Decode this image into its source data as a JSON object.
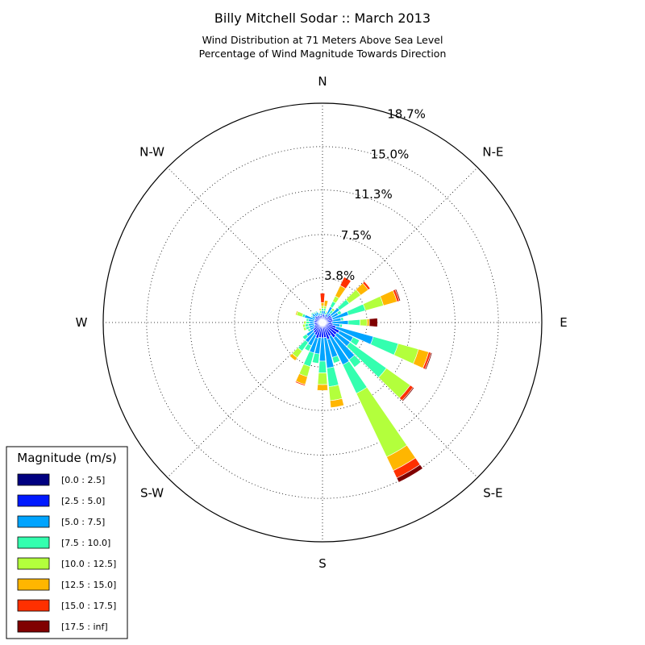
{
  "chart_data": {
    "type": "windrose",
    "title": "Billy Mitchell Sodar :: March 2013",
    "subtitle_lines": [
      "Wind Distribution at 71 Meters Above Sea Level",
      "Percentage of Wind Magnitude Towards Direction"
    ],
    "direction_labels": [
      "N",
      "N-E",
      "E",
      "S-E",
      "S",
      "S-W",
      "W",
      "N-W"
    ],
    "radial_ticks": [
      "3.8%",
      "7.5%",
      "11.3%",
      "15.0%",
      "18.7%"
    ],
    "rmax": 18.7,
    "sector_count": 36,
    "legend": {
      "title": "Magnitude (m/s)",
      "placement": "lower-left",
      "bins": [
        {
          "label": "[0.0 : 2.5]",
          "color": "#000080"
        },
        {
          "label": "[2.5 : 5.0]",
          "color": "#0019ff"
        },
        {
          "label": "[5.0 : 7.5]",
          "color": "#00a4ff"
        },
        {
          "label": "[7.5 : 10.0]",
          "color": "#33ffaf"
        },
        {
          "label": "[10.0 : 12.5]",
          "color": "#b3ff3c"
        },
        {
          "label": "[12.5 : 15.0]",
          "color": "#ffb600"
        },
        {
          "label": "[15.0 : 17.5]",
          "color": "#ff3000"
        },
        {
          "label": "[17.5 : inf]",
          "color": "#800000"
        }
      ]
    },
    "sectors": [
      {
        "direction_deg": 0,
        "values": [
          0.3,
          0.4,
          0.3,
          0.2,
          0.2,
          0.3,
          0.8,
          0.0
        ]
      },
      {
        "direction_deg": 10,
        "values": [
          0.3,
          0.4,
          0.3,
          0.2,
          0.2,
          0.5,
          0.0,
          0.0
        ]
      },
      {
        "direction_deg": 20,
        "values": [
          0.2,
          0.3,
          0.2,
          0.2,
          0.1,
          0.0,
          0.0,
          0.0
        ]
      },
      {
        "direction_deg": 30,
        "values": [
          0.3,
          0.5,
          0.7,
          0.5,
          0.5,
          1.0,
          0.8,
          0.0
        ]
      },
      {
        "direction_deg": 40,
        "values": [
          0.2,
          0.4,
          0.4,
          0.3,
          0.2,
          0.0,
          0.0,
          0.0
        ]
      },
      {
        "direction_deg": 50,
        "values": [
          0.3,
          0.6,
          0.9,
          1.0,
          1.2,
          0.8,
          0.2,
          0.0
        ]
      },
      {
        "direction_deg": 60,
        "values": [
          0.3,
          0.6,
          0.6,
          0.3,
          0.0,
          0.0,
          0.0,
          0.0
        ]
      },
      {
        "direction_deg": 70,
        "values": [
          0.3,
          0.6,
          1.4,
          1.5,
          1.6,
          1.2,
          0.2,
          0.1
        ]
      },
      {
        "direction_deg": 80,
        "values": [
          0.3,
          0.6,
          0.7,
          0.2,
          0.0,
          0.0,
          0.0,
          0.0
        ]
      },
      {
        "direction_deg": 90,
        "values": [
          0.3,
          0.5,
          1.4,
          1.0,
          0.6,
          0.2,
          0.0,
          0.7
        ]
      },
      {
        "direction_deg": 100,
        "values": [
          0.3,
          0.6,
          0.6,
          0.2,
          0.0,
          0.0,
          0.0,
          0.0
        ]
      },
      {
        "direction_deg": 110,
        "values": [
          0.3,
          0.9,
          3.3,
          2.2,
          1.8,
          0.9,
          0.2,
          0.1
        ]
      },
      {
        "direction_deg": 120,
        "values": [
          0.3,
          1.3,
          1.3,
          0.6,
          0.0,
          0.0,
          0.0,
          0.0
        ]
      },
      {
        "direction_deg": 130,
        "values": [
          0.3,
          1.2,
          1.4,
          3.8,
          2.5,
          0.0,
          0.3,
          0.1
        ]
      },
      {
        "direction_deg": 140,
        "values": [
          0.3,
          1.3,
          2.3,
          0.8,
          0.0,
          0.0,
          0.0,
          0.0
        ]
      },
      {
        "direction_deg": 150,
        "values": [
          0.3,
          1.0,
          2.7,
          2.7,
          6.0,
          1.3,
          0.7,
          0.4
        ]
      },
      {
        "direction_deg": 160,
        "values": [
          0.3,
          1.2,
          1.6,
          0.5,
          0.0,
          0.0,
          0.0,
          0.0
        ]
      },
      {
        "direction_deg": 170,
        "values": [
          0.3,
          1.0,
          2.6,
          1.6,
          1.2,
          0.6,
          0.0,
          0.0
        ]
      },
      {
        "direction_deg": 180,
        "values": [
          0.3,
          1.0,
          2.0,
          1.0,
          1.0,
          0.5,
          0.0,
          0.0
        ]
      },
      {
        "direction_deg": 190,
        "values": [
          0.3,
          1.0,
          1.4,
          0.8,
          0.0,
          0.0,
          0.0,
          0.0
        ]
      },
      {
        "direction_deg": 200,
        "values": [
          0.3,
          1.1,
          1.3,
          1.2,
          0.9,
          0.7,
          0.1,
          0.0
        ]
      },
      {
        "direction_deg": 210,
        "values": [
          0.3,
          0.9,
          1.0,
          0.5,
          0.0,
          0.0,
          0.0,
          0.0
        ]
      },
      {
        "direction_deg": 220,
        "values": [
          0.3,
          0.8,
          1.0,
          0.9,
          0.7,
          0.3,
          0.0,
          0.0
        ]
      },
      {
        "direction_deg": 230,
        "values": [
          0.3,
          0.7,
          0.7,
          0.4,
          0.0,
          0.0,
          0.0,
          0.0
        ]
      },
      {
        "direction_deg": 240,
        "values": [
          0.3,
          0.5,
          0.4,
          0.2,
          0.0,
          0.0,
          0.0,
          0.0
        ]
      },
      {
        "direction_deg": 250,
        "values": [
          0.3,
          0.4,
          0.5,
          0.3,
          0.2,
          0.0,
          0.0,
          0.0
        ]
      },
      {
        "direction_deg": 260,
        "values": [
          0.3,
          0.4,
          0.5,
          0.3,
          0.2,
          0.0,
          0.0,
          0.0
        ]
      },
      {
        "direction_deg": 270,
        "values": [
          0.3,
          0.4,
          0.4,
          0.3,
          0.2,
          0.0,
          0.0,
          0.0
        ]
      },
      {
        "direction_deg": 280,
        "values": [
          0.3,
          0.4,
          0.5,
          0.2,
          0.0,
          0.0,
          0.0,
          0.0
        ]
      },
      {
        "direction_deg": 290,
        "values": [
          0.3,
          0.4,
          0.9,
          0.2,
          0.5,
          0.1,
          0.0,
          0.0
        ]
      },
      {
        "direction_deg": 300,
        "values": [
          0.3,
          0.4,
          0.3,
          0.1,
          0.0,
          0.0,
          0.0,
          0.0
        ]
      },
      {
        "direction_deg": 310,
        "values": [
          0.3,
          0.5,
          0.3,
          0.1,
          0.0,
          0.0,
          0.0,
          0.0
        ]
      },
      {
        "direction_deg": 320,
        "values": [
          0.3,
          0.4,
          0.3,
          0.1,
          0.0,
          0.0,
          0.0,
          0.0
        ]
      },
      {
        "direction_deg": 330,
        "values": [
          0.3,
          0.4,
          0.3,
          0.1,
          0.0,
          0.0,
          0.0,
          0.0
        ]
      },
      {
        "direction_deg": 340,
        "values": [
          0.3,
          0.3,
          0.2,
          0.1,
          0.0,
          0.0,
          0.0,
          0.0
        ]
      },
      {
        "direction_deg": 350,
        "values": [
          0.3,
          0.3,
          0.2,
          0.2,
          0.1,
          0.1,
          0.0,
          0.0
        ]
      }
    ]
  }
}
